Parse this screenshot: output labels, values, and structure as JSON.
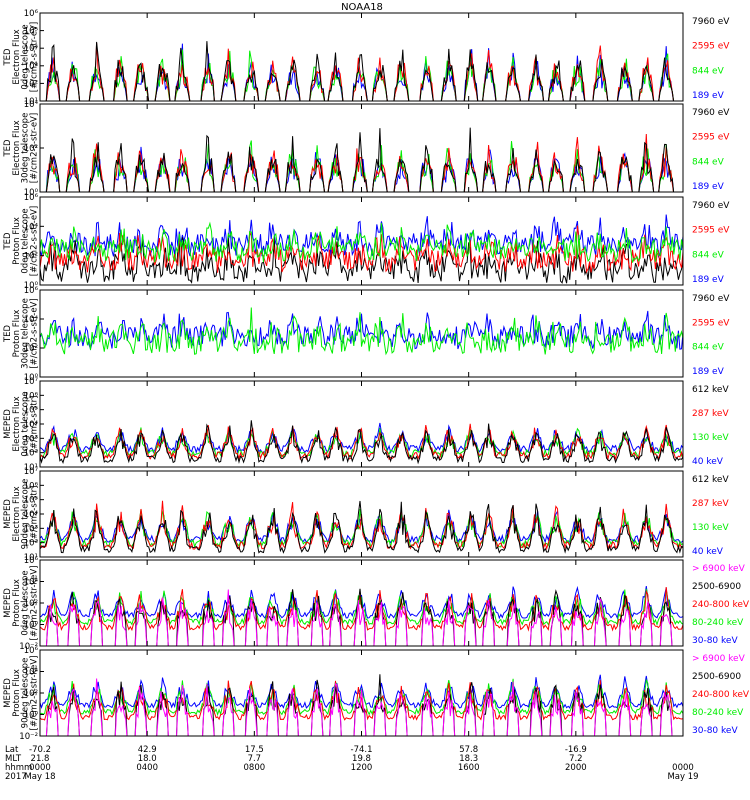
{
  "chart_data": {
    "type": "line",
    "title": "NOAA18",
    "x_axis": {
      "rows": [
        {
          "label": "Lat",
          "values": [
            "-70.2",
            "42.9",
            "17.5",
            "-74.1",
            "57.8",
            "-16.9"
          ]
        },
        {
          "label": "MLT",
          "values": [
            "21.8",
            "18.0",
            "7.7",
            "19.8",
            "18.3",
            "7.2"
          ]
        },
        {
          "label": "hhmm",
          "values": [
            "0000",
            "0400",
            "0800",
            "1200",
            "1600",
            "2000",
            "0000"
          ]
        },
        {
          "label": "2017",
          "values": [
            "May 18",
            "May 19"
          ]
        }
      ],
      "range_hours": [
        0,
        24
      ],
      "tick_hours": [
        0,
        4,
        8,
        12,
        16,
        20,
        24
      ]
    },
    "panels": [
      {
        "kind": "ted-e0",
        "ylabel": [
          "TED",
          "Electron Flux",
          "0deg telescope",
          "[#/cm2-s-str-eV]"
        ],
        "ylim_exp": [
          1,
          6
        ],
        "tick_labels": [
          "10¹",
          "10²",
          "10³",
          "10⁴",
          "10⁵",
          "10⁶"
        ],
        "channels": [
          {
            "label": "7960 eV",
            "color": "#000000"
          },
          {
            "label": "2595 eV",
            "color": "#ff0000"
          },
          {
            "label": "844 eV",
            "color": "#00ee00"
          },
          {
            "label": "189 eV",
            "color": "#0000ff"
          }
        ]
      },
      {
        "kind": "ted-e30",
        "ylabel": [
          "TED",
          "Electron Flux",
          "30deg telescope",
          "[#/cm2-s-str-eV]"
        ],
        "ylim_exp": [
          0,
          4
        ],
        "tick_labels": [
          "10⁰",
          "10²",
          "10⁴"
        ],
        "channels": [
          {
            "label": "7960 eV",
            "color": "#000000"
          },
          {
            "label": "2595 eV",
            "color": "#ff0000"
          },
          {
            "label": "844 eV",
            "color": "#00ee00"
          },
          {
            "label": "189 eV",
            "color": "#0000ff"
          }
        ]
      },
      {
        "kind": "ted-p0",
        "ylabel": [
          "TED",
          "Proton Flux",
          "0deg telescope",
          "[#/cm2-s-str-eV]"
        ],
        "ylim_exp": [
          0,
          6
        ],
        "tick_labels": [
          "10⁰",
          "10²",
          "10⁴",
          "10⁶"
        ],
        "channels": [
          {
            "label": "7960 eV",
            "color": "#000000"
          },
          {
            "label": "2595 eV",
            "color": "#ff0000"
          },
          {
            "label": "844 eV",
            "color": "#00ee00"
          },
          {
            "label": "189 eV",
            "color": "#0000ff"
          }
        ]
      },
      {
        "kind": "ted-p30",
        "ylabel": [
          "TED",
          "Proton Flux",
          "30deg telescope",
          "[#/cm2-s-str-eV]"
        ],
        "ylim_exp": [
          0,
          6
        ],
        "tick_labels": [
          "10⁰",
          "10²",
          "10⁴",
          "10⁶"
        ],
        "channels": [
          {
            "label": "7960 eV",
            "color": "#000000"
          },
          {
            "label": "2595 eV",
            "color": "#ff0000"
          },
          {
            "label": "844 eV",
            "color": "#00ee00"
          },
          {
            "label": "189 eV",
            "color": "#0000ff"
          }
        ]
      },
      {
        "kind": "mep-e0",
        "ylabel": [
          "MEPED",
          "Electron Flux",
          "0deg telescope",
          "[#/cm2-s-str]"
        ],
        "ylim_exp": [
          1,
          7
        ],
        "tick_labels": [
          "10¹",
          "10²",
          "10³",
          "10⁴",
          "10⁵",
          "10⁶",
          "10⁷"
        ],
        "channels": [
          {
            "label": "612 keV",
            "color": "#000000"
          },
          {
            "label": "287 keV",
            "color": "#ff0000"
          },
          {
            "label": "130 keV",
            "color": "#00ee00"
          },
          {
            "label": "40 keV",
            "color": "#0000ff"
          }
        ]
      },
      {
        "kind": "mep-e90",
        "ylabel": [
          "MEPED",
          "Electron Flux",
          "90deg telescope",
          "[#/cm2-s-str]"
        ],
        "ylim_exp": [
          1,
          7
        ],
        "tick_labels": [
          "10¹",
          "10²",
          "10³",
          "10⁴",
          "10⁵",
          "10⁶",
          "10⁷"
        ],
        "channels": [
          {
            "label": "612 keV",
            "color": "#000000"
          },
          {
            "label": "287 keV",
            "color": "#ff0000"
          },
          {
            "label": "130 keV",
            "color": "#00ee00"
          },
          {
            "label": "40 keV",
            "color": "#0000ff"
          }
        ]
      },
      {
        "kind": "mep-p0",
        "ylabel": [
          "MEPED",
          "Proton Flux",
          "0deg telescope",
          "[#/cm2-s-str-keV]"
        ],
        "ylim_exp": [
          -2,
          6
        ],
        "tick_labels": [
          "10⁻²",
          "10⁰",
          "10²",
          "10⁴",
          "10⁶"
        ],
        "channels": [
          {
            "label": "> 6900 keV",
            "color": "#ff00ff"
          },
          {
            "label": "2500-6900",
            "color": "#000000"
          },
          {
            "label": "240-800 keV",
            "color": "#ff0000"
          },
          {
            "label": "80-240 keV",
            "color": "#00ee00"
          },
          {
            "label": "30-80 keV",
            "color": "#0000ff"
          }
        ]
      },
      {
        "kind": "mep-p90",
        "ylabel": [
          "MEPED",
          "Proton Flux",
          "90deg telescope",
          "[#/cm2-s-str-keV]"
        ],
        "ylim_exp": [
          -2,
          6
        ],
        "tick_labels": [
          "10⁻²",
          "10⁰",
          "10²",
          "10⁴",
          "10⁶"
        ],
        "channels": [
          {
            "label": "> 6900 keV",
            "color": "#ff00ff"
          },
          {
            "label": "2500-6900",
            "color": "#000000"
          },
          {
            "label": "240-800 keV",
            "color": "#ff0000"
          },
          {
            "label": "80-240 keV",
            "color": "#00ee00"
          },
          {
            "label": "30-80 keV",
            "color": "#0000ff"
          }
        ]
      }
    ]
  }
}
